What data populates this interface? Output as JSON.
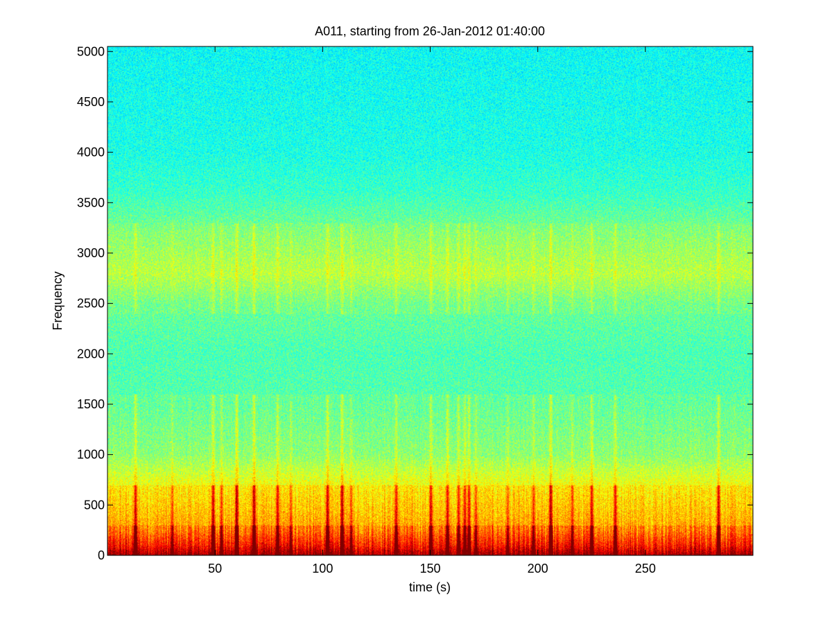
{
  "chart_data": {
    "type": "heatmap",
    "title": "A011, starting from 26-Jan-2012 01:40:00",
    "xlabel": "time (s)",
    "ylabel": "Frequency",
    "xlim": [
      0,
      300
    ],
    "ylim": [
      0,
      5050
    ],
    "xticks": [
      50,
      100,
      150,
      200,
      250
    ],
    "yticks": [
      0,
      500,
      1000,
      1500,
      2000,
      2500,
      3000,
      3500,
      4000,
      4500,
      5000
    ],
    "colormap": "jet",
    "grid": false,
    "intensity_profile": [
      {
        "frequency": 0,
        "level": 0.9
      },
      {
        "frequency": 100,
        "level": 0.78
      },
      {
        "frequency": 250,
        "level": 0.68
      },
      {
        "frequency": 450,
        "level": 0.64
      },
      {
        "frequency": 700,
        "level": 0.6
      },
      {
        "frequency": 1000,
        "level": 0.5
      },
      {
        "frequency": 1500,
        "level": 0.46
      },
      {
        "frequency": 2000,
        "level": 0.45
      },
      {
        "frequency": 2500,
        "level": 0.48
      },
      {
        "frequency": 2800,
        "level": 0.55
      },
      {
        "frequency": 3200,
        "level": 0.5
      },
      {
        "frequency": 3600,
        "level": 0.43
      },
      {
        "frequency": 4000,
        "level": 0.4
      },
      {
        "frequency": 5050,
        "level": 0.38
      }
    ],
    "broadband_events_s": [
      13,
      30,
      49,
      53,
      60,
      68,
      79,
      85,
      102,
      109,
      113,
      134,
      150,
      158,
      163,
      166,
      168,
      171,
      186,
      198,
      206,
      216,
      225,
      236,
      284
    ]
  }
}
